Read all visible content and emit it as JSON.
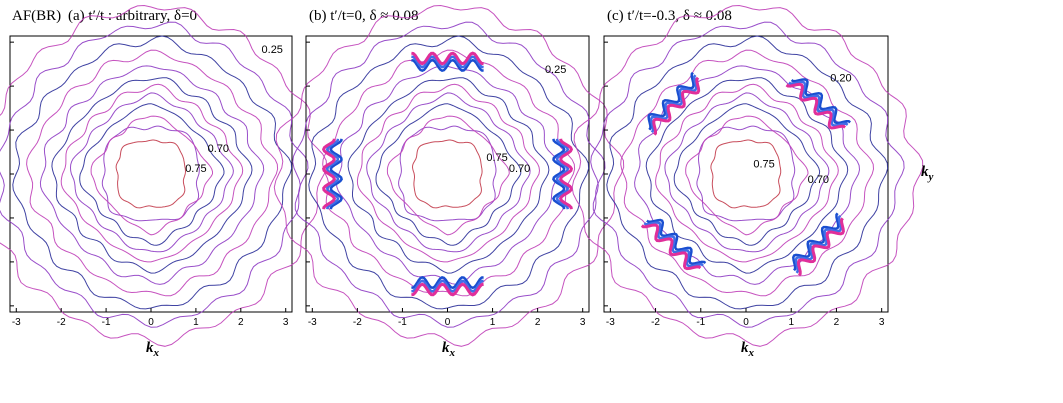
{
  "prefix_label": "AF(BR)",
  "ylabel_text": "k",
  "ylabel_sub": "y",
  "chart_data": [
    {
      "type": "contour",
      "title": "(a) t′/t : arbitrary, δ=0",
      "xlabel": "k",
      "xlabel_sub": "x",
      "xlim": [
        -3.14,
        3.14
      ],
      "ylim": [
        -3.14,
        3.14
      ],
      "xticks": [
        "-3",
        "-2",
        "-1",
        "0",
        "1",
        "2",
        "3"
      ],
      "contour_labels": [
        {
          "text": "0.25",
          "kx": 2.7,
          "ky": 2.75
        },
        {
          "text": "0.70",
          "kx": 1.5,
          "ky": 0.5
        },
        {
          "text": "0.75",
          "kx": 1.0,
          "ky": 0.05
        }
      ],
      "colors": [
        "#1e2a8c",
        "#3b3fb0",
        "#6a3fc0",
        "#a03ec8",
        "#c040c0",
        "#c83a9a",
        "#c23a4a"
      ]
    },
    {
      "type": "contour",
      "title": "(b) t′/t=0, δ ≈ 0.08",
      "xlabel": "k",
      "xlabel_sub": "x",
      "xlim": [
        -3.14,
        3.14
      ],
      "ylim": [
        -3.14,
        3.14
      ],
      "xticks": [
        "-3",
        "-2",
        "-1",
        "0",
        "1",
        "2",
        "3"
      ],
      "contour_labels": [
        {
          "text": "0.25",
          "kx": 2.4,
          "ky": 2.3
        },
        {
          "text": "0.75",
          "kx": 1.1,
          "ky": 0.3
        },
        {
          "text": "0.70",
          "kx": 1.6,
          "ky": 0.05
        }
      ],
      "colors": [
        "#1e2a8c",
        "#3b3fb0",
        "#6a3fc0",
        "#a03ec8",
        "#c040c0",
        "#c83a9a",
        "#c23a4a"
      ]
    },
    {
      "type": "contour",
      "title": "(c) t′/t=-0.3, δ ≈ 0.08",
      "xlabel": "k",
      "xlabel_sub": "x",
      "xlim": [
        -3.14,
        3.14
      ],
      "ylim": [
        -3.14,
        3.14
      ],
      "xticks": [
        "-3",
        "-2",
        "-1",
        "0",
        "1",
        "2",
        "3"
      ],
      "contour_labels": [
        {
          "text": "0.20",
          "kx": 2.1,
          "ky": 2.1
        },
        {
          "text": "0.75",
          "kx": 0.4,
          "ky": 0.15
        },
        {
          "text": "0.70",
          "kx": 1.6,
          "ky": -0.2
        }
      ],
      "colors": [
        "#1e2a8c",
        "#3b3fb0",
        "#6a3fc0",
        "#a03ec8",
        "#c040c0",
        "#c83a9a",
        "#c23a4a"
      ]
    }
  ]
}
